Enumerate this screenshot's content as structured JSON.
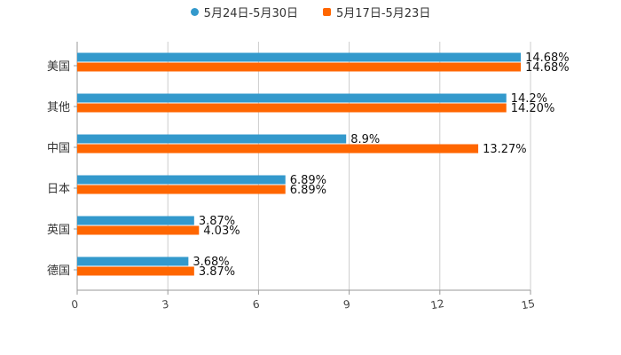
{
  "chart_data": {
    "type": "bar",
    "orientation": "horizontal",
    "title": "",
    "xlabel": "",
    "ylabel": "",
    "xlim": [
      0,
      15
    ],
    "xticks": [
      0,
      3,
      6,
      9,
      12,
      15
    ],
    "grid": true,
    "legend_position": "top-center",
    "categories": [
      "美国",
      "其他",
      "中国",
      "日本",
      "英国",
      "德国"
    ],
    "series": [
      {
        "name": "5月24日-5月30日",
        "color": "#3399cc",
        "legend_marker": "circle",
        "values": [
          14.68,
          14.2,
          8.9,
          6.89,
          3.87,
          3.68
        ],
        "labels": [
          "14.68%",
          "14.2%",
          "8.9%",
          "6.89%",
          "3.87%",
          "3.68%"
        ]
      },
      {
        "name": "5月17日-5月23日",
        "color": "#ff6600",
        "legend_marker": "square",
        "values": [
          14.68,
          14.2,
          13.27,
          6.89,
          4.03,
          3.87
        ],
        "labels": [
          "14.68%",
          "14.20%",
          "13.27%",
          "6.89%",
          "4.03%",
          "3.87%"
        ]
      }
    ]
  }
}
